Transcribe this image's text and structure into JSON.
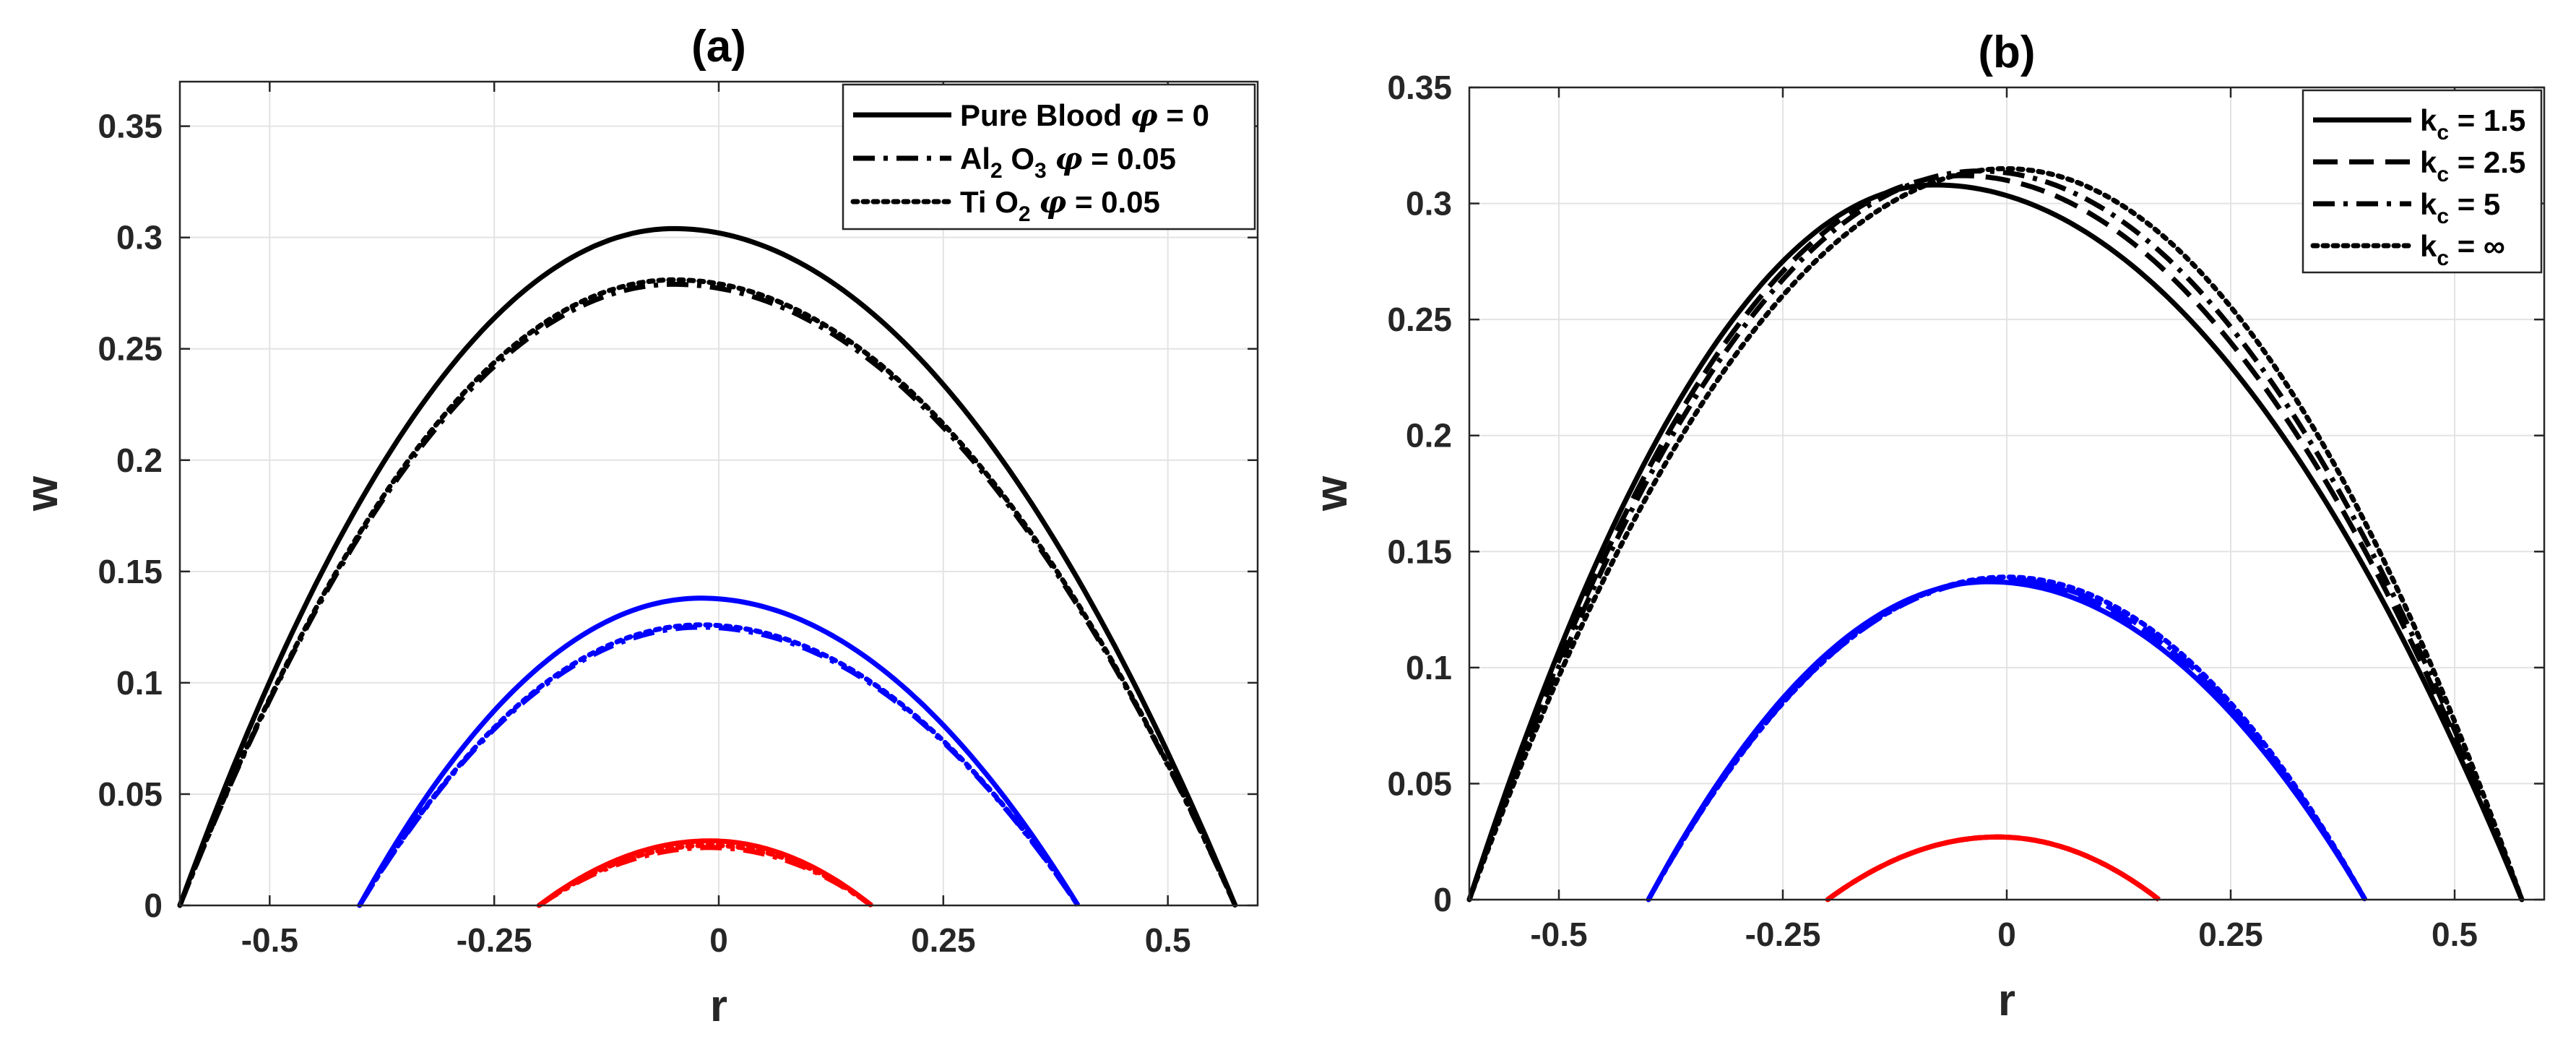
{
  "chart_data": [
    {
      "type": "line",
      "panel": "a",
      "title": "(a)",
      "xlabel": "r",
      "ylabel": "w",
      "xlim": [
        -0.6,
        0.6
      ],
      "ylim": [
        0,
        0.37
      ],
      "xticks": [
        -0.5,
        -0.25,
        0,
        0.25,
        0.5
      ],
      "xtick_labels": [
        "-0.5",
        "-0.25",
        "0",
        "0.25",
        "0.5"
      ],
      "yticks": [
        0,
        0.05,
        0.1,
        0.15,
        0.2,
        0.25,
        0.3,
        0.35
      ],
      "ytick_labels": [
        "0",
        "0.05",
        "0.1",
        "0.15",
        "0.2",
        "0.25",
        "0.3",
        "0.35"
      ],
      "grid": true,
      "legend_position": "top-right",
      "legend": [
        {
          "parts": [
            {
              "t": "Pure Blood "
            },
            {
              "sym": "φ"
            },
            {
              "t": " = 0"
            }
          ],
          "dash": "solid"
        },
        {
          "parts": [
            {
              "t": "Al"
            },
            {
              "sub": "2"
            },
            {
              "t": " O"
            },
            {
              "sub": "3"
            },
            {
              "t": " "
            },
            {
              "sym": "φ"
            },
            {
              "t": " = 0.05"
            }
          ],
          "dash": "dashdot"
        },
        {
          "parts": [
            {
              "t": "Ti O"
            },
            {
              "sub": "2"
            },
            {
              "t": " "
            },
            {
              "sym": "φ"
            },
            {
              "t": " = 0.05"
            }
          ],
          "dash": "dotted"
        }
      ],
      "series": [
        {
          "name": "Pure Blood φ = 0 (black)",
          "color": "#000000",
          "dash": "solid",
          "r_left": -0.6,
          "r_right": 0.575,
          "r_peak": -0.05,
          "w_peak": 0.304
        },
        {
          "name": "Al2 O3 φ = 0.05 (black)",
          "color": "#000000",
          "dash": "dashdot",
          "r_left": -0.6,
          "r_right": 0.575,
          "r_peak": -0.05,
          "w_peak": 0.279
        },
        {
          "name": "Ti O2 φ = 0.05 (black)",
          "color": "#000000",
          "dash": "dotted",
          "r_left": -0.6,
          "r_right": 0.575,
          "r_peak": -0.05,
          "w_peak": 0.281
        },
        {
          "name": "Pure Blood φ = 0 (blue)",
          "color": "#0000ff",
          "dash": "solid",
          "r_left": -0.4,
          "r_right": 0.4,
          "r_peak": -0.02,
          "w_peak": 0.138
        },
        {
          "name": "Al2 O3 φ = 0.05 (blue)",
          "color": "#0000ff",
          "dash": "dashdot",
          "r_left": -0.4,
          "r_right": 0.4,
          "r_peak": -0.02,
          "w_peak": 0.125
        },
        {
          "name": "Ti O2 φ = 0.05 (blue)",
          "color": "#0000ff",
          "dash": "dotted",
          "r_left": -0.4,
          "r_right": 0.4,
          "r_peak": -0.02,
          "w_peak": 0.126
        },
        {
          "name": "Pure Blood φ = 0 (red)",
          "color": "#ff0000",
          "dash": "solid",
          "r_left": -0.2,
          "r_right": 0.17,
          "r_peak": -0.01,
          "w_peak": 0.029
        },
        {
          "name": "Al2 O3 φ = 0.05 (red)",
          "color": "#ff0000",
          "dash": "dashdot",
          "r_left": -0.2,
          "r_right": 0.17,
          "r_peak": -0.01,
          "w_peak": 0.026
        },
        {
          "name": "Ti O2 φ = 0.05 (red)",
          "color": "#ff0000",
          "dash": "dotted",
          "r_left": -0.2,
          "r_right": 0.17,
          "r_peak": -0.01,
          "w_peak": 0.027
        }
      ]
    },
    {
      "type": "line",
      "panel": "b",
      "title": "(b)",
      "xlabel": "r",
      "ylabel": "w",
      "xlim": [
        -0.6,
        0.6
      ],
      "ylim": [
        0,
        0.35
      ],
      "xticks": [
        -0.5,
        -0.25,
        0,
        0.25,
        0.5
      ],
      "xtick_labels": [
        "-0.5",
        "-0.25",
        "0",
        "0.25",
        "0.5"
      ],
      "yticks": [
        0,
        0.05,
        0.1,
        0.15,
        0.2,
        0.25,
        0.3,
        0.35
      ],
      "ytick_labels": [
        "0",
        "0.05",
        "0.1",
        "0.15",
        "0.2",
        "0.25",
        "0.3",
        "0.35"
      ],
      "grid": true,
      "legend_position": "top-right",
      "legend": [
        {
          "parts": [
            {
              "t": "k"
            },
            {
              "sub": "c"
            },
            {
              "t": " = 1.5"
            }
          ],
          "dash": "solid"
        },
        {
          "parts": [
            {
              "t": "k"
            },
            {
              "sub": "c"
            },
            {
              "t": " = 2.5"
            }
          ],
          "dash": "dashed"
        },
        {
          "parts": [
            {
              "t": "k"
            },
            {
              "sub": "c"
            },
            {
              "t": " = 5"
            }
          ],
          "dash": "dashdot"
        },
        {
          "parts": [
            {
              "t": "k"
            },
            {
              "sub": "c"
            },
            {
              "t": " = ∞"
            }
          ],
          "dash": "dotted"
        }
      ],
      "series": [
        {
          "name": "kc = 1.5 (black)",
          "color": "#000000",
          "dash": "solid",
          "r_left": -0.6,
          "r_right": 0.575,
          "r_peak": -0.08,
          "w_peak": 0.308
        },
        {
          "name": "kc = 2.5 (black)",
          "color": "#000000",
          "dash": "dashed",
          "r_left": -0.6,
          "r_right": 0.575,
          "r_peak": -0.05,
          "w_peak": 0.312
        },
        {
          "name": "kc = 5 (black)",
          "color": "#000000",
          "dash": "dashdot",
          "r_left": -0.6,
          "r_right": 0.575,
          "r_peak": -0.03,
          "w_peak": 0.314
        },
        {
          "name": "kc = ∞ (black)",
          "color": "#000000",
          "dash": "dotted",
          "r_left": -0.6,
          "r_right": 0.575,
          "r_peak": 0.0,
          "w_peak": 0.315
        },
        {
          "name": "kc = 1.5 (blue)",
          "color": "#0000ff",
          "dash": "solid",
          "r_left": -0.4,
          "r_right": 0.4,
          "r_peak": -0.02,
          "w_peak": 0.137
        },
        {
          "name": "kc = 2.5 (blue)",
          "color": "#0000ff",
          "dash": "dashed",
          "r_left": -0.4,
          "r_right": 0.4,
          "r_peak": -0.01,
          "w_peak": 0.138
        },
        {
          "name": "kc = 5 (blue)",
          "color": "#0000ff",
          "dash": "dashdot",
          "r_left": -0.4,
          "r_right": 0.4,
          "r_peak": -0.005,
          "w_peak": 0.138
        },
        {
          "name": "kc = ∞ (blue)",
          "color": "#0000ff",
          "dash": "dotted",
          "r_left": -0.4,
          "r_right": 0.4,
          "r_peak": 0.0,
          "w_peak": 0.139
        },
        {
          "name": "kc = 1.5 (red)",
          "color": "#ff0000",
          "dash": "solid",
          "r_left": -0.2,
          "r_right": 0.17,
          "r_peak": -0.01,
          "w_peak": 0.027
        },
        {
          "name": "kc = 2.5 (red)",
          "color": "#ff0000",
          "dash": "dashed",
          "r_left": -0.2,
          "r_right": 0.17,
          "r_peak": -0.01,
          "w_peak": 0.027
        },
        {
          "name": "kc = 5 (red)",
          "color": "#ff0000",
          "dash": "dashdot",
          "r_left": -0.2,
          "r_right": 0.17,
          "r_peak": -0.01,
          "w_peak": 0.027
        },
        {
          "name": "kc = ∞ (red)",
          "color": "#ff0000",
          "dash": "dotted",
          "r_left": -0.2,
          "r_right": 0.17,
          "r_peak": -0.01,
          "w_peak": 0.027
        }
      ]
    }
  ]
}
